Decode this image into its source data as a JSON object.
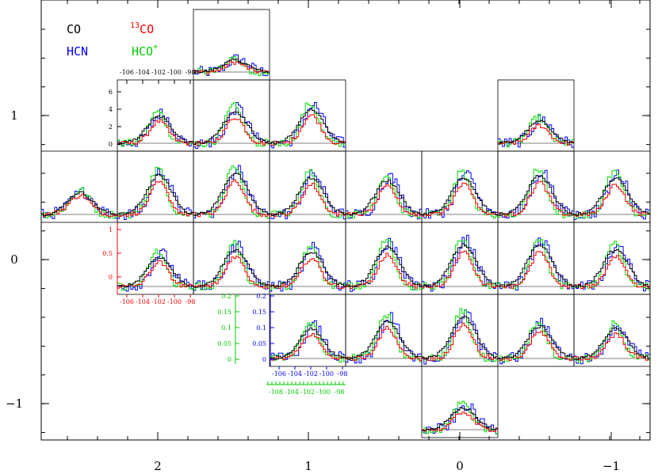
{
  "chart_data": {
    "type": "line",
    "title": "",
    "xlabel": "",
    "ylabel": "",
    "outer_axes": {
      "x_ticks": [
        "2",
        "1",
        "0",
        "−1"
      ],
      "y_ticks": [
        "1",
        "0",
        "−1"
      ]
    },
    "legend": {
      "placement": "top-left",
      "entries": [
        {
          "name": "CO",
          "sup": "",
          "pre": "",
          "color": "#000000"
        },
        {
          "name": "CO",
          "sup": "",
          "pre": "13",
          "color": "#ff0000"
        },
        {
          "name": "HCN",
          "sup": "",
          "pre": "",
          "color": "#0000ff"
        },
        {
          "name": "HCO",
          "sup": "+",
          "pre": "",
          "color": "#00cc00"
        }
      ]
    },
    "series_colors": {
      "CO": "#000000",
      "13CO": "#ff0000",
      "HCN": "#0000ff",
      "HCO+": "#00dd00"
    },
    "velocity_ticks_black": [
      "-106",
      "-104",
      "-102",
      "-100",
      "-98"
    ],
    "velocity_ticks_red": [
      "-106",
      "-104",
      "-102",
      "-100",
      "-98"
    ],
    "velocity_ticks_blue": [
      "-106",
      "-104",
      "-102",
      "-100",
      "-98"
    ],
    "velocity_ticks_green": [
      "-108",
      "-104",
      "-102",
      "-100",
      "-98"
    ],
    "intensity_ticks_black": [
      "6",
      "4",
      "2",
      "0"
    ],
    "intensity_ticks_red": [
      "1",
      "0.5",
      "0"
    ],
    "intensity_ticks_blue": [
      "0.2",
      "0.15",
      "0.1",
      "0.05",
      "0"
    ],
    "intensity_ticks_green": [
      "0.2",
      "0.15",
      "0.1",
      "0.05",
      "0"
    ],
    "spectra_grid": [
      {
        "row": 0,
        "col": 2,
        "peak": 0.25
      },
      {
        "row": 1,
        "col": 1,
        "peak": 0.55
      },
      {
        "row": 1,
        "col": 2,
        "peak": 0.65
      },
      {
        "row": 1,
        "col": 3,
        "peak": 0.7
      },
      {
        "row": 1,
        "col": 6,
        "peak": 0.45
      },
      {
        "row": 2,
        "col": 0,
        "peak": 0.3
      },
      {
        "row": 2,
        "col": 1,
        "peak": 0.8
      },
      {
        "row": 2,
        "col": 2,
        "peak": 0.85
      },
      {
        "row": 2,
        "col": 3,
        "peak": 0.75
      },
      {
        "row": 2,
        "col": 4,
        "peak": 0.7
      },
      {
        "row": 2,
        "col": 5,
        "peak": 0.75
      },
      {
        "row": 2,
        "col": 6,
        "peak": 0.8
      },
      {
        "row": 2,
        "col": 7,
        "peak": 0.75
      },
      {
        "row": 3,
        "col": 1,
        "peak": 0.6
      },
      {
        "row": 3,
        "col": 2,
        "peak": 0.75
      },
      {
        "row": 3,
        "col": 3,
        "peak": 0.7
      },
      {
        "row": 3,
        "col": 4,
        "peak": 0.8
      },
      {
        "row": 3,
        "col": 5,
        "peak": 0.85
      },
      {
        "row": 3,
        "col": 6,
        "peak": 0.85
      },
      {
        "row": 3,
        "col": 7,
        "peak": 0.75
      },
      {
        "row": 4,
        "col": 3,
        "peak": 0.6
      },
      {
        "row": 4,
        "col": 4,
        "peak": 0.75
      },
      {
        "row": 4,
        "col": 5,
        "peak": 0.85
      },
      {
        "row": 4,
        "col": 6,
        "peak": 0.65
      },
      {
        "row": 4,
        "col": 7,
        "peak": 0.6
      },
      {
        "row": 5,
        "col": 5,
        "peak": 0.45
      }
    ]
  }
}
